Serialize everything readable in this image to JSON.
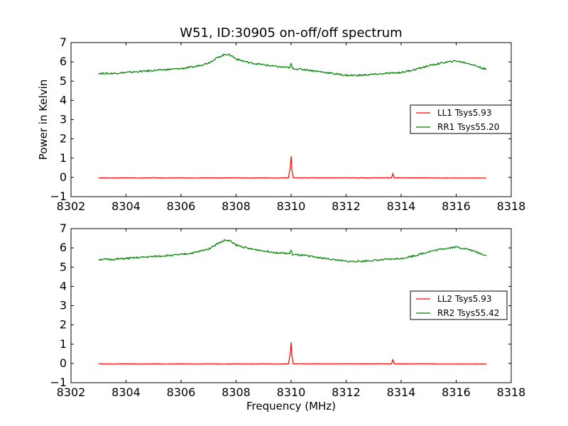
{
  "chart_data": [
    {
      "type": "line",
      "title": "W51, ID:30905 on-off/off spectrum",
      "xlabel": "",
      "ylabel": "Power in Kelvin",
      "xlim": [
        8302,
        8318
      ],
      "ylim": [
        -1,
        7
      ],
      "xticks": [
        "8302",
        "8304",
        "8306",
        "8308",
        "8310",
        "8312",
        "8314",
        "8316",
        "8318"
      ],
      "yticks": [
        "−1",
        "0",
        "1",
        "2",
        "3",
        "4",
        "5",
        "6",
        "7"
      ],
      "legend_position": "right",
      "series": [
        {
          "name": "LL1 Tsys5.93",
          "color": "#ff0000",
          "x": [
            8303.0,
            8303.5,
            8304.0,
            8304.5,
            8305.0,
            8305.5,
            8306.0,
            8306.5,
            8307.0,
            8307.5,
            8308.0,
            8308.5,
            8309.0,
            8309.5,
            8309.9,
            8309.97,
            8310.0,
            8310.03,
            8310.08,
            8310.5,
            8311.0,
            8311.5,
            8312.0,
            8312.5,
            8313.0,
            8313.5,
            8313.65,
            8313.7,
            8313.75,
            8314.0,
            8314.5,
            8315.0,
            8315.5,
            8316.0,
            8316.5,
            8317.1
          ],
          "y": [
            -0.02,
            -0.03,
            -0.02,
            -0.03,
            -0.02,
            -0.03,
            -0.02,
            -0.03,
            -0.02,
            -0.03,
            -0.02,
            -0.03,
            -0.02,
            -0.03,
            -0.02,
            0.5,
            1.1,
            0.4,
            -0.02,
            -0.02,
            -0.02,
            -0.02,
            -0.02,
            -0.02,
            -0.02,
            -0.02,
            -0.02,
            0.2,
            -0.02,
            -0.02,
            -0.02,
            -0.02,
            -0.03,
            -0.03,
            -0.03,
            -0.03
          ]
        },
        {
          "name": "RR1 Tsys55.20",
          "color": "#008000",
          "x": [
            8303.0,
            8303.5,
            8304.0,
            8304.5,
            8305.0,
            8305.5,
            8306.0,
            8306.5,
            8307.0,
            8307.3,
            8307.6,
            8307.8,
            8308.0,
            8308.5,
            8309.0,
            8309.5,
            8309.95,
            8310.0,
            8310.05,
            8310.5,
            8311.0,
            8311.5,
            8312.0,
            8312.5,
            8313.0,
            8313.5,
            8314.0,
            8314.5,
            8315.0,
            8315.5,
            8316.0,
            8316.5,
            8317.1
          ],
          "y": [
            5.4,
            5.4,
            5.45,
            5.5,
            5.55,
            5.6,
            5.65,
            5.75,
            5.95,
            6.2,
            6.4,
            6.35,
            6.15,
            5.95,
            5.85,
            5.75,
            5.7,
            5.9,
            5.65,
            5.6,
            5.5,
            5.4,
            5.3,
            5.3,
            5.35,
            5.4,
            5.45,
            5.6,
            5.8,
            5.95,
            6.05,
            5.9,
            5.6
          ]
        }
      ]
    },
    {
      "type": "line",
      "title": "",
      "xlabel": "Frequency (MHz)",
      "ylabel": "",
      "xlim": [
        8302,
        8318
      ],
      "ylim": [
        -1,
        7
      ],
      "xticks": [
        "8302",
        "8304",
        "8306",
        "8308",
        "8310",
        "8312",
        "8314",
        "8316",
        "8318"
      ],
      "yticks": [
        "−1",
        "0",
        "1",
        "2",
        "3",
        "4",
        "5",
        "6",
        "7"
      ],
      "legend_position": "right",
      "series": [
        {
          "name": "LL2 Tsys5.93",
          "color": "#ff0000",
          "x": [
            8303.0,
            8303.5,
            8304.0,
            8304.5,
            8305.0,
            8305.5,
            8306.0,
            8306.5,
            8307.0,
            8307.5,
            8308.0,
            8308.5,
            8309.0,
            8309.5,
            8309.9,
            8309.97,
            8310.0,
            8310.03,
            8310.08,
            8310.5,
            8311.0,
            8311.5,
            8312.0,
            8312.5,
            8313.0,
            8313.5,
            8313.65,
            8313.7,
            8313.75,
            8314.0,
            8314.5,
            8315.0,
            8315.5,
            8316.0,
            8316.5,
            8317.1
          ],
          "y": [
            -0.02,
            -0.03,
            -0.02,
            -0.03,
            -0.02,
            -0.03,
            -0.02,
            -0.03,
            -0.02,
            -0.03,
            -0.02,
            -0.03,
            -0.02,
            -0.03,
            -0.02,
            0.5,
            1.1,
            0.4,
            -0.02,
            -0.02,
            -0.02,
            -0.02,
            -0.02,
            -0.02,
            -0.02,
            -0.02,
            -0.02,
            0.2,
            -0.02,
            -0.02,
            -0.02,
            -0.02,
            -0.03,
            -0.03,
            -0.03,
            -0.03
          ]
        },
        {
          "name": "RR2 Tsys55.42",
          "color": "#008000",
          "x": [
            8303.0,
            8303.5,
            8304.0,
            8304.5,
            8305.0,
            8305.5,
            8306.0,
            8306.5,
            8307.0,
            8307.3,
            8307.6,
            8307.8,
            8308.0,
            8308.5,
            8309.0,
            8309.5,
            8309.95,
            8310.0,
            8310.05,
            8310.5,
            8311.0,
            8311.5,
            8312.0,
            8312.5,
            8313.0,
            8313.5,
            8314.0,
            8314.5,
            8315.0,
            8315.5,
            8316.0,
            8316.5,
            8317.1
          ],
          "y": [
            5.4,
            5.4,
            5.45,
            5.5,
            5.55,
            5.6,
            5.65,
            5.75,
            5.95,
            6.2,
            6.4,
            6.35,
            6.15,
            5.95,
            5.85,
            5.75,
            5.7,
            5.9,
            5.65,
            5.6,
            5.5,
            5.4,
            5.3,
            5.3,
            5.35,
            5.4,
            5.45,
            5.6,
            5.8,
            5.95,
            6.05,
            5.9,
            5.6
          ]
        }
      ]
    }
  ]
}
